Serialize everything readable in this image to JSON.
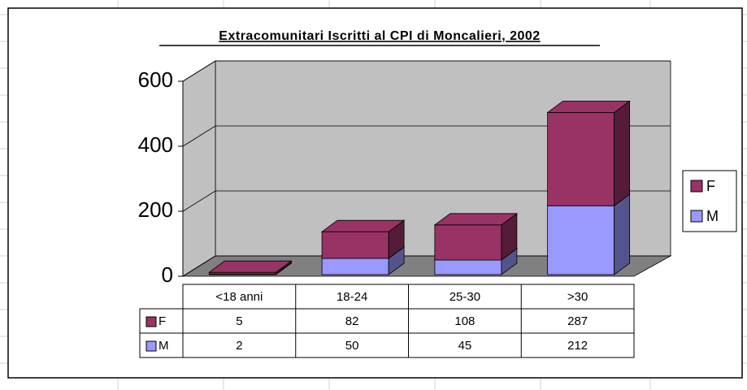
{
  "chart_data": {
    "type": "bar3d_stacked",
    "title": "Extracomunitari Iscritti al CPI di Moncalieri, 2002",
    "categories": [
      "<18 anni",
      "18-24",
      "25-30",
      ">30"
    ],
    "series": [
      {
        "name": "F",
        "color": "#993366",
        "values": [
          5,
          82,
          108,
          287
        ]
      },
      {
        "name": "M",
        "color": "#9999ff",
        "values": [
          2,
          50,
          45,
          212
        ]
      }
    ],
    "ylim": [
      0,
      600
    ],
    "yticks": [
      0,
      200,
      400,
      600
    ],
    "grid": true,
    "legend": "right",
    "data_table": true
  }
}
